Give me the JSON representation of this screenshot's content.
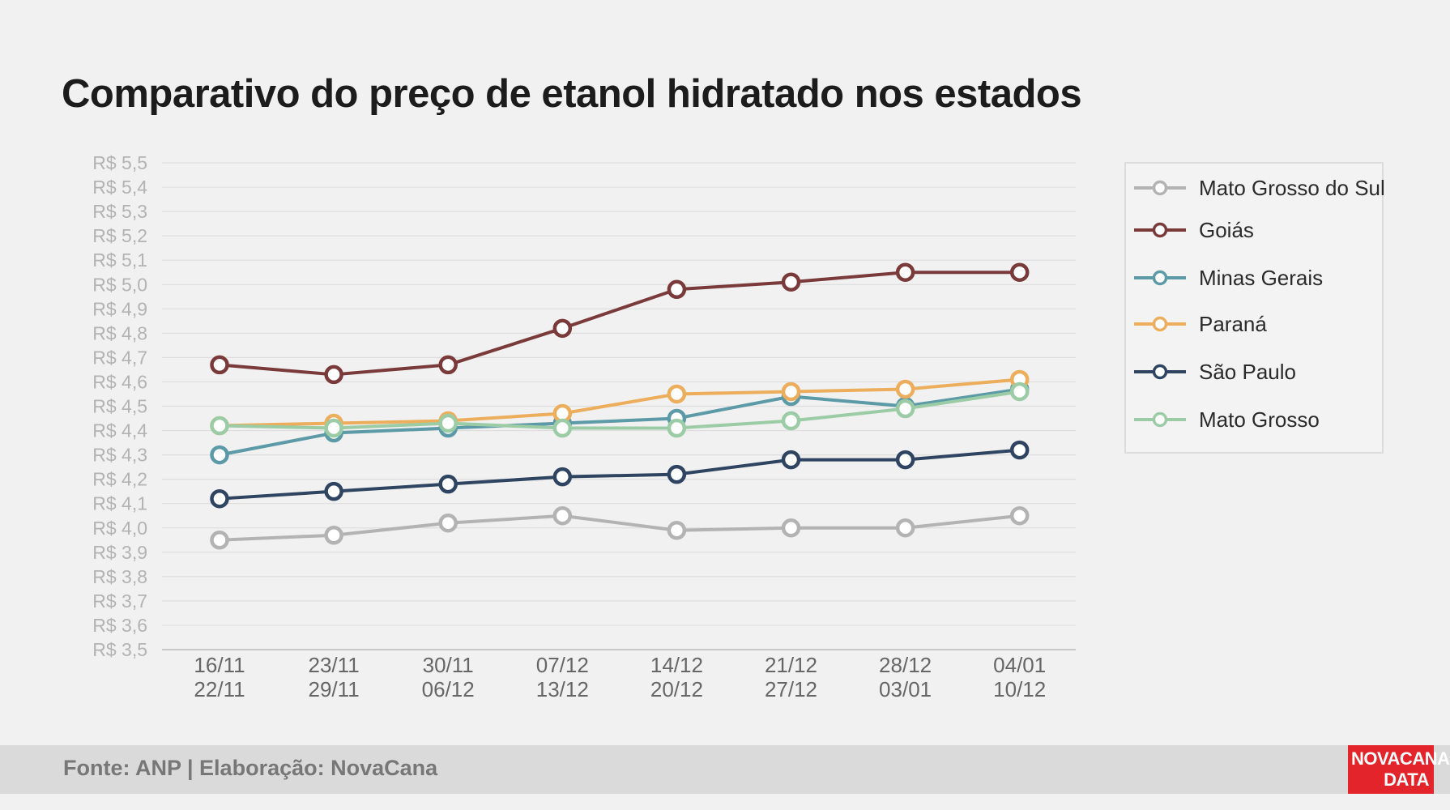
{
  "chart_data": {
    "type": "line",
    "title": "Comparativo do preço de etanol hidratado nos estados",
    "categories": [
      [
        "16/11",
        "22/11"
      ],
      [
        "23/11",
        "29/11"
      ],
      [
        "30/11",
        "06/12"
      ],
      [
        "07/12",
        "13/12"
      ],
      [
        "14/12",
        "20/12"
      ],
      [
        "21/12",
        "27/12"
      ],
      [
        "28/12",
        "03/01"
      ],
      [
        "04/01",
        "10/12"
      ]
    ],
    "ylim": [
      3.5,
      5.5
    ],
    "y_ticks": [
      "R$ 3,5",
      "R$ 3,6",
      "R$ 3,7",
      "R$ 3,8",
      "R$ 3,9",
      "R$ 4,0",
      "R$ 4,1",
      "R$ 4,2",
      "R$ 4,3",
      "R$ 4,4",
      "R$ 4,5",
      "R$ 4,6",
      "R$ 4,7",
      "R$ 4,8",
      "R$ 4,9",
      "R$ 5,0",
      "R$ 5,1",
      "R$ 5,2",
      "R$ 5,3",
      "R$ 5,4",
      "R$ 5,5"
    ],
    "grid": true,
    "legend_position": "right",
    "series": [
      {
        "name": "Mato Grosso do Sul",
        "color": "#b3b3b3",
        "values": [
          3.95,
          3.97,
          4.02,
          4.05,
          3.99,
          4.0,
          4.0,
          4.05
        ]
      },
      {
        "name": "Goiás",
        "color": "#7a3a3a",
        "values": [
          4.67,
          4.63,
          4.67,
          4.82,
          4.98,
          5.01,
          5.05,
          5.05
        ]
      },
      {
        "name": "Minas Gerais",
        "color": "#5b9aa6",
        "values": [
          4.3,
          4.39,
          4.41,
          4.43,
          4.45,
          4.54,
          4.5,
          4.57
        ]
      },
      {
        "name": "Paraná",
        "color": "#ecae5c",
        "values": [
          4.42,
          4.43,
          4.44,
          4.47,
          4.55,
          4.56,
          4.57,
          4.61
        ]
      },
      {
        "name": "São Paulo",
        "color": "#2e4461",
        "values": [
          4.12,
          4.15,
          4.18,
          4.21,
          4.22,
          4.28,
          4.28,
          4.32
        ]
      },
      {
        "name": "Mato Grosso",
        "color": "#9ccca6",
        "values": [
          4.42,
          4.41,
          4.43,
          4.41,
          4.41,
          4.44,
          4.49,
          4.56
        ]
      }
    ]
  },
  "footer": {
    "source": "Fonte: ANP | Elaboração: NovaCana"
  },
  "logo": {
    "line1": "NOVACANA",
    "line2": "DATA",
    "color": "#e3242b"
  }
}
